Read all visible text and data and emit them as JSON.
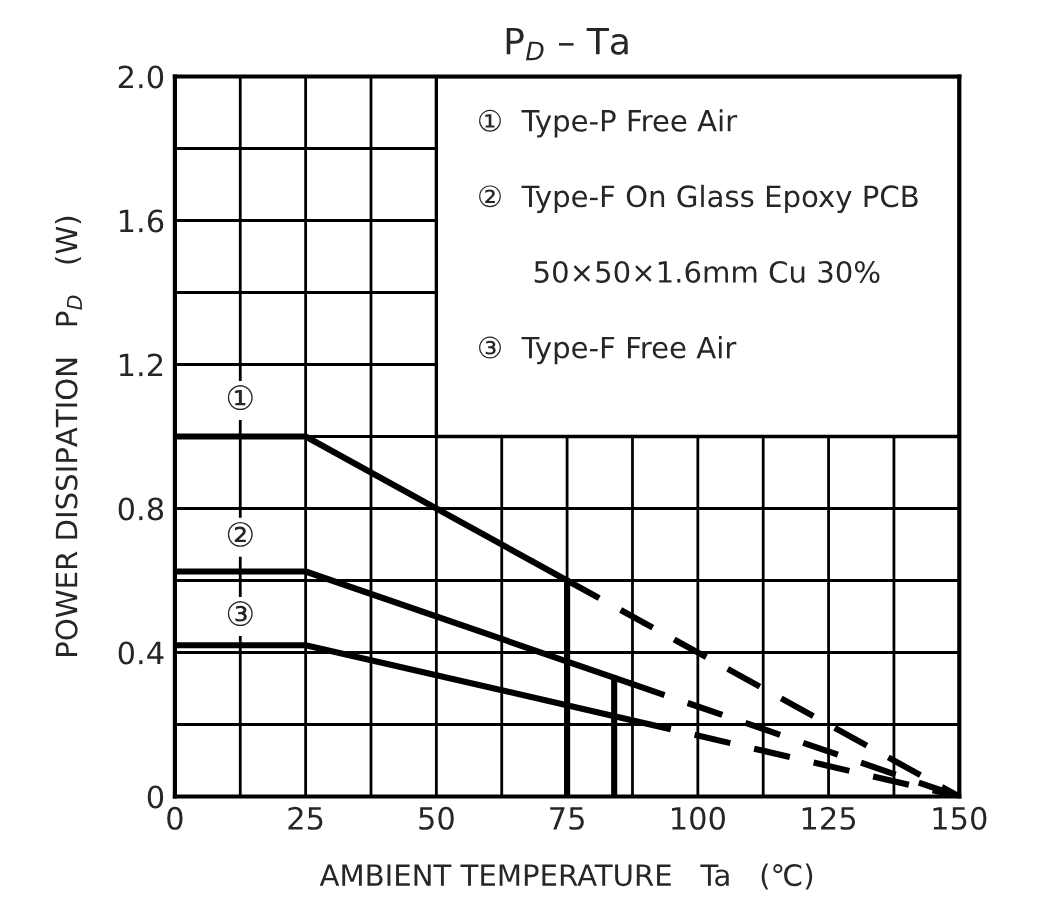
{
  "chart_data": {
    "type": "line",
    "title": "P$_{D}$ – Ta",
    "xlabel": "AMBIENT TEMPERATURE   Ta   (℃)",
    "ylabel": "POWER DISSIPATION   P$_{D}$   (W)",
    "series": [
      {
        "x": [
          0,
          25,
          75
        ],
        "values": [
          1.0,
          1.0,
          0.6
        ],
        "color": "#000000",
        "line_style": "solid"
      },
      {
        "x": [
          75,
          150
        ],
        "values": [
          0.6,
          0
        ],
        "color": "#000000",
        "line_style": "dashed"
      },
      {
        "x": [
          0,
          25,
          87
        ],
        "values": [
          0.625,
          0.625,
          0.315
        ],
        "color": "#000000",
        "line_style": "solid"
      },
      {
        "x": [
          87,
          150
        ],
        "values": [
          0.315,
          0
        ],
        "color": "#000000",
        "line_style": "dashed"
      },
      {
        "x": [
          0,
          25,
          88
        ],
        "values": [
          0.42,
          0.42,
          0.21
        ],
        "color": "#000000",
        "line_style": "solid"
      },
      {
        "x": [
          88,
          150
        ],
        "values": [
          0.21,
          0
        ],
        "color": "#000000",
        "line_style": "dashed"
      },
      {
        "x": [
          75,
          75
        ],
        "values": [
          0,
          0.6
        ],
        "color": "#000000",
        "line_style": "solid"
      },
      {
        "x": [
          84,
          84
        ],
        "values": [
          0,
          0.33
        ],
        "color": "#000000",
        "line_style": "solid"
      }
    ],
    "xlim": [
      0,
      150
    ],
    "ylim": [
      0,
      2.0
    ],
    "xticks": [
      0,
      {
        "value": 12.5,
        "label": null
      },
      25,
      {
        "value": 37.5,
        "label": null
      },
      50,
      {
        "value": 62.5,
        "label": null
      },
      75,
      {
        "value": 87.5,
        "label": null
      },
      100,
      {
        "value": 112.5,
        "label": null
      },
      125,
      {
        "value": 137.5,
        "label": null
      },
      150
    ],
    "yticks": [
      0,
      {
        "value": 0.2,
        "label": null
      },
      {
        "value": 0.4,
        "label": "0.4"
      },
      {
        "value": 0.6,
        "label": null
      },
      {
        "value": 0.8,
        "label": "0.8"
      },
      {
        "value": 1.0,
        "label": null
      },
      {
        "value": 1.2,
        "label": "1.2"
      },
      {
        "value": 1.4,
        "label": null
      },
      {
        "value": 1.6,
        "label": "1.6"
      },
      {
        "value": 1.8,
        "label": null
      },
      {
        "value": 2.0,
        "label": "2.0"
      }
    ],
    "grid": true,
    "marker": "none",
    "annotations": [
      {
        "text": "①",
        "y": 1.1
      },
      {
        "text": "②",
        "y": 0.72
      },
      {
        "text": "③",
        "y": 0.5
      },
      "①  Type-P Free Air",
      "②  Type-F On Glass Epoxy PCB",
      "      50×50×1.6mm Cu 30%",
      "③  Type-F Free Air"
    ]
  }
}
